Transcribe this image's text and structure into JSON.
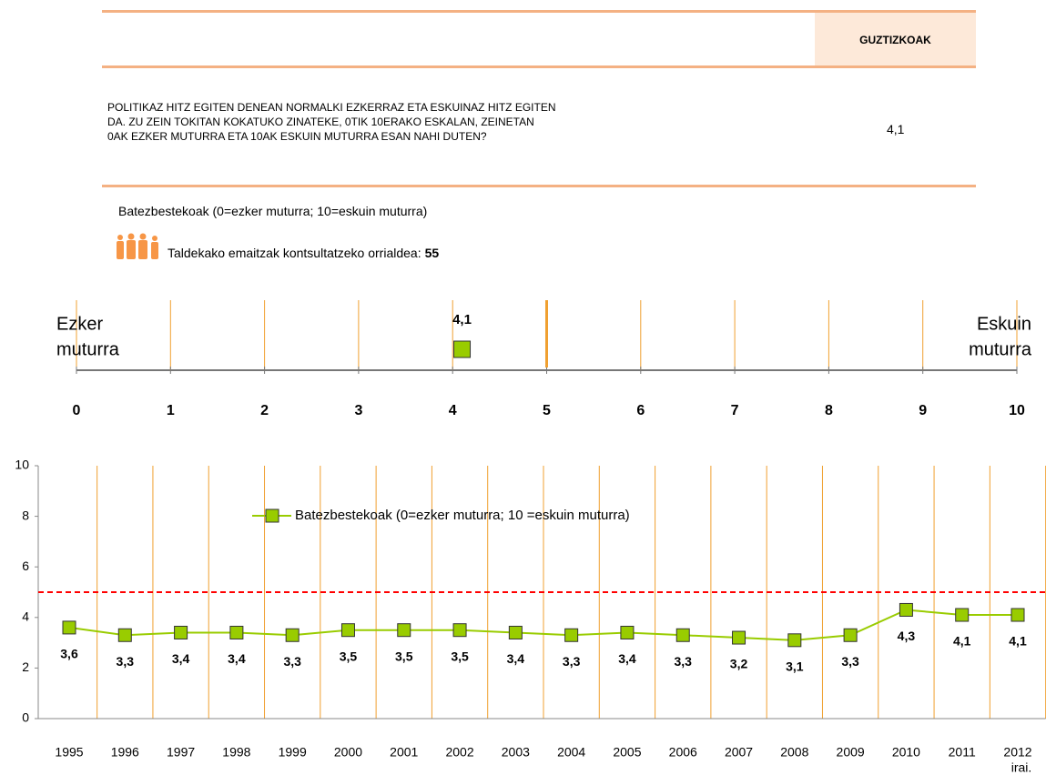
{
  "table": {
    "header": "GUZTIZKOAK",
    "question_lines": [
      "POLITIKAZ HITZ EGITEN DENEAN NORMALKI EZKERRAZ ETA ESKUINAZ HITZ EGITEN",
      "DA. ZU ZEIN TOKITAN KOKATUKO ZINATEKE, 0TIK 10ERAKO ESKALAN, ZEINETAN",
      "0AK EZKER MUTURRA ETA 10AK ESKUIN MUTURRA ESAN NAHI DUTEN?"
    ],
    "value": "4,1"
  },
  "note": "Batezbestekoak (0=ezker muturra; 10=eskuin muturra)",
  "page_ref": {
    "text": "Taldekako emaitzak kontsultatzeko orrialdea:",
    "page": "55"
  },
  "chart_data": [
    {
      "type": "scale",
      "left_label": [
        "Ezker",
        "muturra"
      ],
      "right_label": [
        "Eskuin",
        "muturra"
      ],
      "xlim": [
        0,
        10
      ],
      "xticks": [
        0,
        1,
        2,
        3,
        4,
        5,
        6,
        7,
        8,
        9,
        10
      ],
      "values": [
        4.1
      ],
      "value_labels": [
        "4,1"
      ],
      "reference_line": 5,
      "color": "#99cc00"
    },
    {
      "type": "line",
      "categories": [
        "1995",
        "1996",
        "1997",
        "1998",
        "1999",
        "2000",
        "2001",
        "2002",
        "2003",
        "2004",
        "2005",
        "2006",
        "2007",
        "2008",
        "2009",
        "2010",
        "2011",
        "2012"
      ],
      "category_note": "irai.",
      "series": [
        {
          "name": "Batezbestekoak (0=ezker muturra; 10 =eskuin muturra)",
          "color": "#99cc00",
          "values": [
            3.6,
            3.3,
            3.4,
            3.4,
            3.3,
            3.5,
            3.5,
            3.5,
            3.4,
            3.3,
            3.4,
            3.3,
            3.2,
            3.1,
            3.3,
            4.3,
            4.1,
            4.1
          ],
          "value_labels": [
            "3,6",
            "3,3",
            "3,4",
            "3,4",
            "3,3",
            "3,5",
            "3,5",
            "3,5",
            "3,4",
            "3,3",
            "3,4",
            "3,3",
            "3,2",
            "3,1",
            "3,3",
            "4,3",
            "4,1",
            "4,1"
          ]
        }
      ],
      "ylim": [
        0,
        10
      ],
      "yticks": [
        0,
        2,
        4,
        6,
        8,
        10
      ],
      "reference_line": 5,
      "reference_color": "#ff0000"
    }
  ]
}
